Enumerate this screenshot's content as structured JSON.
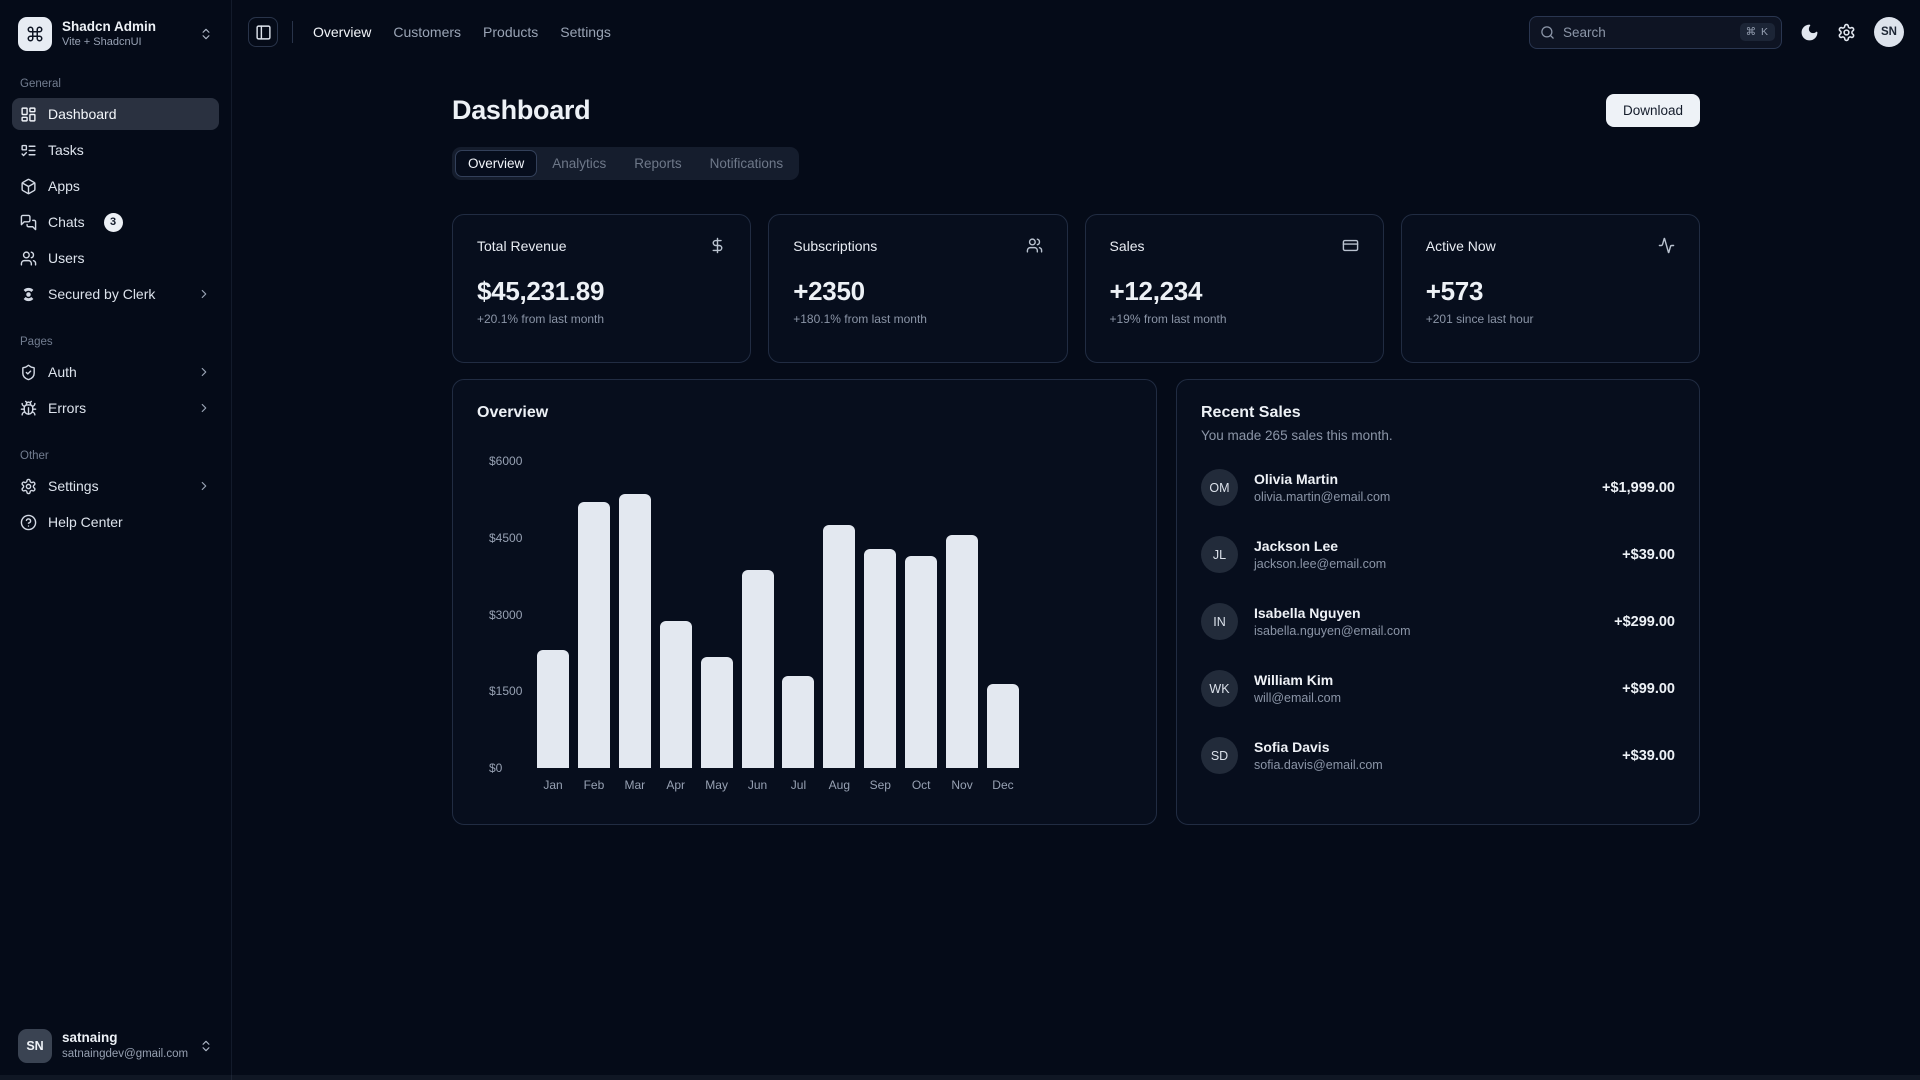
{
  "app": {
    "name": "Shadcn Admin",
    "subtitle": "Vite + ShadcnUI"
  },
  "header": {
    "nav": [
      {
        "label": "Overview",
        "active": true
      },
      {
        "label": "Customers",
        "active": false
      },
      {
        "label": "Products",
        "active": false
      },
      {
        "label": "Settings",
        "active": false
      }
    ],
    "search": {
      "placeholder": "Search",
      "shortcut": "⌘ K"
    },
    "avatar_initials": "SN"
  },
  "sidebar": {
    "sections": [
      {
        "label": "General",
        "items": [
          {
            "label": "Dashboard",
            "icon": "layout-dashboard",
            "active": true
          },
          {
            "label": "Tasks",
            "icon": "list-todo"
          },
          {
            "label": "Apps",
            "icon": "package"
          },
          {
            "label": "Chats",
            "icon": "messages-square",
            "badge": "3"
          },
          {
            "label": "Users",
            "icon": "users"
          },
          {
            "label": "Secured by Clerk",
            "icon": "clerk",
            "chevron": true
          }
        ]
      },
      {
        "label": "Pages",
        "items": [
          {
            "label": "Auth",
            "icon": "shield-check",
            "chevron": true
          },
          {
            "label": "Errors",
            "icon": "bug",
            "chevron": true
          }
        ]
      },
      {
        "label": "Other",
        "items": [
          {
            "label": "Settings",
            "icon": "settings",
            "chevron": true
          },
          {
            "label": "Help Center",
            "icon": "help-circle"
          }
        ]
      }
    ],
    "user": {
      "name": "satnaing",
      "email": "satnaingdev@gmail.com",
      "initials": "SN"
    }
  },
  "page": {
    "title": "Dashboard",
    "download_label": "Download",
    "tabs": [
      {
        "label": "Overview",
        "active": true
      },
      {
        "label": "Analytics",
        "active": false
      },
      {
        "label": "Reports",
        "active": false
      },
      {
        "label": "Notifications",
        "active": false
      }
    ]
  },
  "stats": [
    {
      "title": "Total Revenue",
      "icon": "dollar-sign",
      "value": "$45,231.89",
      "note": "+20.1% from last month"
    },
    {
      "title": "Subscriptions",
      "icon": "users",
      "value": "+2350",
      "note": "+180.1% from last month"
    },
    {
      "title": "Sales",
      "icon": "credit-card",
      "value": "+12,234",
      "note": "+19% from last month"
    },
    {
      "title": "Active Now",
      "icon": "activity",
      "value": "+573",
      "note": "+201 since last hour"
    }
  ],
  "chart_data": {
    "type": "bar",
    "title": "Overview",
    "categories": [
      "Jan",
      "Feb",
      "Mar",
      "Apr",
      "May",
      "Jun",
      "Jul",
      "Aug",
      "Sep",
      "Oct",
      "Nov",
      "Dec"
    ],
    "values": [
      2300,
      5200,
      5350,
      2870,
      2170,
      3870,
      1800,
      4750,
      4280,
      4140,
      4550,
      1640
    ],
    "y_ticks": [
      "$6000",
      "$4500",
      "$3000",
      "$1500",
      "$0"
    ],
    "ylim": [
      0,
      6000
    ],
    "xlabel": "",
    "ylabel": "",
    "grid": false,
    "legend": "none",
    "bar_color": "#e3e8f0"
  },
  "recent_sales": {
    "title": "Recent Sales",
    "subtitle": "You made 265 sales this month.",
    "items": [
      {
        "initials": "OM",
        "name": "Olivia Martin",
        "email": "olivia.martin@email.com",
        "amount": "+$1,999.00"
      },
      {
        "initials": "JL",
        "name": "Jackson Lee",
        "email": "jackson.lee@email.com",
        "amount": "+$39.00"
      },
      {
        "initials": "IN",
        "name": "Isabella Nguyen",
        "email": "isabella.nguyen@email.com",
        "amount": "+$299.00"
      },
      {
        "initials": "WK",
        "name": "William Kim",
        "email": "will@email.com",
        "amount": "+$99.00"
      },
      {
        "initials": "SD",
        "name": "Sofia Davis",
        "email": "sofia.davis@email.com",
        "amount": "+$39.00"
      }
    ]
  },
  "colors": {
    "background": "#050b18",
    "card": "#070e1d",
    "border": "#212c42",
    "active_item": "#2a3140",
    "bar": "#e3e8f0",
    "foreground": "#edf1f6",
    "muted": "#8b95a7"
  }
}
